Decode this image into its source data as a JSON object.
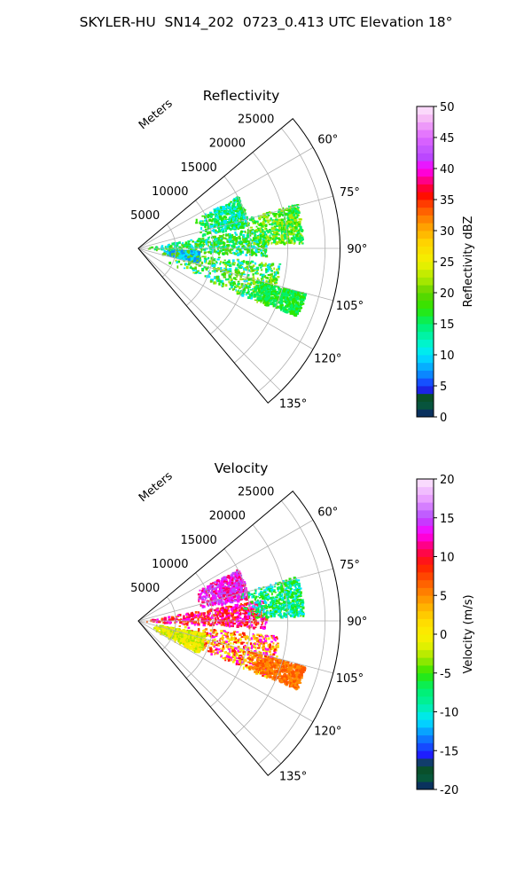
{
  "title": "SKYLER-HU  SN14_202  0723_0.413 UTC Elevation 18°",
  "chart_data": [
    {
      "type": "polar",
      "title": "Reflectivity",
      "range_label": "Meters",
      "range_ticks": [
        5000,
        10000,
        15000,
        20000,
        25000
      ],
      "azimuth_ticks": [
        "60°",
        "75°",
        "90°",
        "105°",
        "120°",
        "135°"
      ],
      "colorbar": {
        "label": "Reflectivity dBZ",
        "ticks": [
          0,
          5,
          10,
          15,
          20,
          25,
          30,
          35,
          40,
          45,
          50
        ],
        "range": [
          0,
          50
        ],
        "stops": [
          [
            0,
            "#0b1f6e"
          ],
          [
            2,
            "#07573a"
          ],
          [
            3.5,
            "#0a4d23"
          ],
          [
            4.5,
            "#1e1eff"
          ],
          [
            7,
            "#0a8cff"
          ],
          [
            10,
            "#00e6ff"
          ],
          [
            12,
            "#00f5c8"
          ],
          [
            15,
            "#00f06a"
          ],
          [
            17.5,
            "#2ee600"
          ],
          [
            20,
            "#61d400"
          ],
          [
            22,
            "#a8e800"
          ],
          [
            25,
            "#f2f200"
          ],
          [
            28,
            "#ffd500"
          ],
          [
            31,
            "#ff9900"
          ],
          [
            34,
            "#ff4a00"
          ],
          [
            36,
            "#ff0000"
          ],
          [
            38,
            "#ff0080"
          ],
          [
            40,
            "#ff00ff"
          ],
          [
            42,
            "#b64cff"
          ],
          [
            45,
            "#e066ff"
          ],
          [
            48,
            "#f5b8f5"
          ],
          [
            50,
            "#fde8fd"
          ]
        ]
      },
      "echo_regions": [
        {
          "az": [
            62,
            78
          ],
          "r": [
            8000,
            15000
          ],
          "colors": [
            "#00e6ff",
            "#00f06a",
            "#2ee600"
          ]
        },
        {
          "az": [
            80,
            93
          ],
          "r": [
            500,
            17000
          ],
          "colors": [
            "#2ee600",
            "#61d400",
            "#00f06a",
            "#00e6ff"
          ]
        },
        {
          "az": [
            74,
            88
          ],
          "r": [
            14000,
            22000
          ],
          "colors": [
            "#00f06a",
            "#2ee600",
            "#a8e800"
          ]
        },
        {
          "az": [
            96,
            114
          ],
          "r": [
            4000,
            19000
          ],
          "colors": [
            "#2ee600",
            "#61d400",
            "#a8e800",
            "#00e6ff",
            "#00f06a"
          ]
        },
        {
          "az": [
            105,
            113
          ],
          "r": [
            15000,
            23000
          ],
          "colors": [
            "#00f06a",
            "#2ee600"
          ]
        },
        {
          "az": [
            92,
            102
          ],
          "r": [
            3000,
            8000
          ],
          "colors": [
            "#0a8cff",
            "#00e6ff",
            "#61d400"
          ]
        }
      ]
    },
    {
      "type": "polar",
      "title": "Velocity",
      "range_label": "Meters",
      "range_ticks": [
        5000,
        10000,
        15000,
        20000,
        25000
      ],
      "azimuth_ticks": [
        "60°",
        "75°",
        "90°",
        "105°",
        "120°",
        "135°"
      ],
      "colorbar": {
        "label": "Velocity (m/s)",
        "ticks": [
          -20,
          -15,
          -10,
          -5,
          0,
          5,
          10,
          15,
          20
        ],
        "range": [
          -20,
          20
        ],
        "stops": [
          [
            -20,
            "#0b1f6e"
          ],
          [
            -18.5,
            "#07573a"
          ],
          [
            -17,
            "#0a4d23"
          ],
          [
            -15.5,
            "#1e1eff"
          ],
          [
            -13,
            "#0a8cff"
          ],
          [
            -11,
            "#00e6ff"
          ],
          [
            -9,
            "#00f0a0"
          ],
          [
            -7,
            "#00f06a"
          ],
          [
            -5,
            "#2ee600"
          ],
          [
            -3,
            "#a8e800"
          ],
          [
            -1,
            "#f2f200"
          ],
          [
            1,
            "#ffe600"
          ],
          [
            3,
            "#ffc000"
          ],
          [
            5,
            "#ff8c00"
          ],
          [
            7,
            "#ff5500"
          ],
          [
            9,
            "#ff1a00"
          ],
          [
            11,
            "#ff0060"
          ],
          [
            13,
            "#ff00ff"
          ],
          [
            15,
            "#b64cff"
          ],
          [
            17.5,
            "#e9a0ff"
          ],
          [
            20,
            "#fde8fd"
          ]
        ]
      },
      "echo_regions": [
        {
          "az": [
            62,
            78
          ],
          "r": [
            8000,
            15000
          ],
          "colors": [
            "#ff00ff",
            "#b64cff",
            "#ff0060"
          ]
        },
        {
          "az": [
            80,
            93
          ],
          "r": [
            500,
            17000
          ],
          "colors": [
            "#ff1a00",
            "#ff0060",
            "#ff00ff",
            "#ff5500"
          ]
        },
        {
          "az": [
            74,
            88
          ],
          "r": [
            14000,
            22000
          ],
          "colors": [
            "#00e6ff",
            "#00f06a",
            "#2ee600"
          ]
        },
        {
          "az": [
            96,
            114
          ],
          "r": [
            4000,
            19000
          ],
          "colors": [
            "#ff8c00",
            "#ffc000",
            "#ff1a00",
            "#ff00ff",
            "#f2f200"
          ]
        },
        {
          "az": [
            105,
            113
          ],
          "r": [
            15000,
            23000
          ],
          "colors": [
            "#ff8c00",
            "#ff5500"
          ]
        },
        {
          "az": [
            100,
            118
          ],
          "r": [
            2000,
            9000
          ],
          "colors": [
            "#a8e800",
            "#f2f200",
            "#ffe600"
          ]
        }
      ]
    }
  ]
}
